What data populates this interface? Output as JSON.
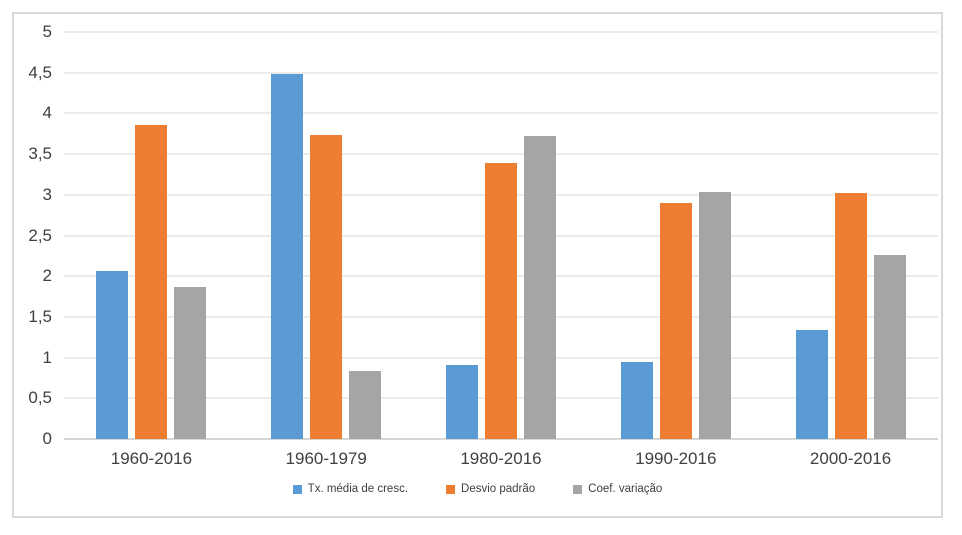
{
  "chart_data": {
    "type": "bar",
    "title": "",
    "categories": [
      "1960-2016",
      "1960-1979",
      "1980-2016",
      "1990-2016",
      "2000-2016"
    ],
    "series": [
      {
        "name": "Tx. média de cresc.",
        "color": "#5B9BD5",
        "values": [
          2.07,
          4.48,
          0.91,
          0.95,
          1.34
        ]
      },
      {
        "name": "Desvio padrão",
        "color": "#ED7D31",
        "values": [
          3.86,
          3.73,
          3.39,
          2.9,
          3.02
        ]
      },
      {
        "name": "Coef. variação",
        "color": "#A5A5A5",
        "values": [
          1.87,
          0.83,
          3.72,
          3.04,
          2.26
        ]
      }
    ],
    "xlabel": "",
    "ylabel": "",
    "ylim": [
      0,
      5
    ],
    "yticks": [
      "5",
      "4,5",
      "4",
      "3,5",
      "3",
      "2,5",
      "2",
      "1,5",
      "1",
      "0,5",
      "0"
    ],
    "ytick_values": [
      5,
      4.5,
      4,
      3.5,
      3,
      2.5,
      2,
      1.5,
      1,
      0.5,
      0
    ],
    "grid": "horizontal",
    "grid_color": "#D9D9D9",
    "legend_position": "bottom"
  }
}
